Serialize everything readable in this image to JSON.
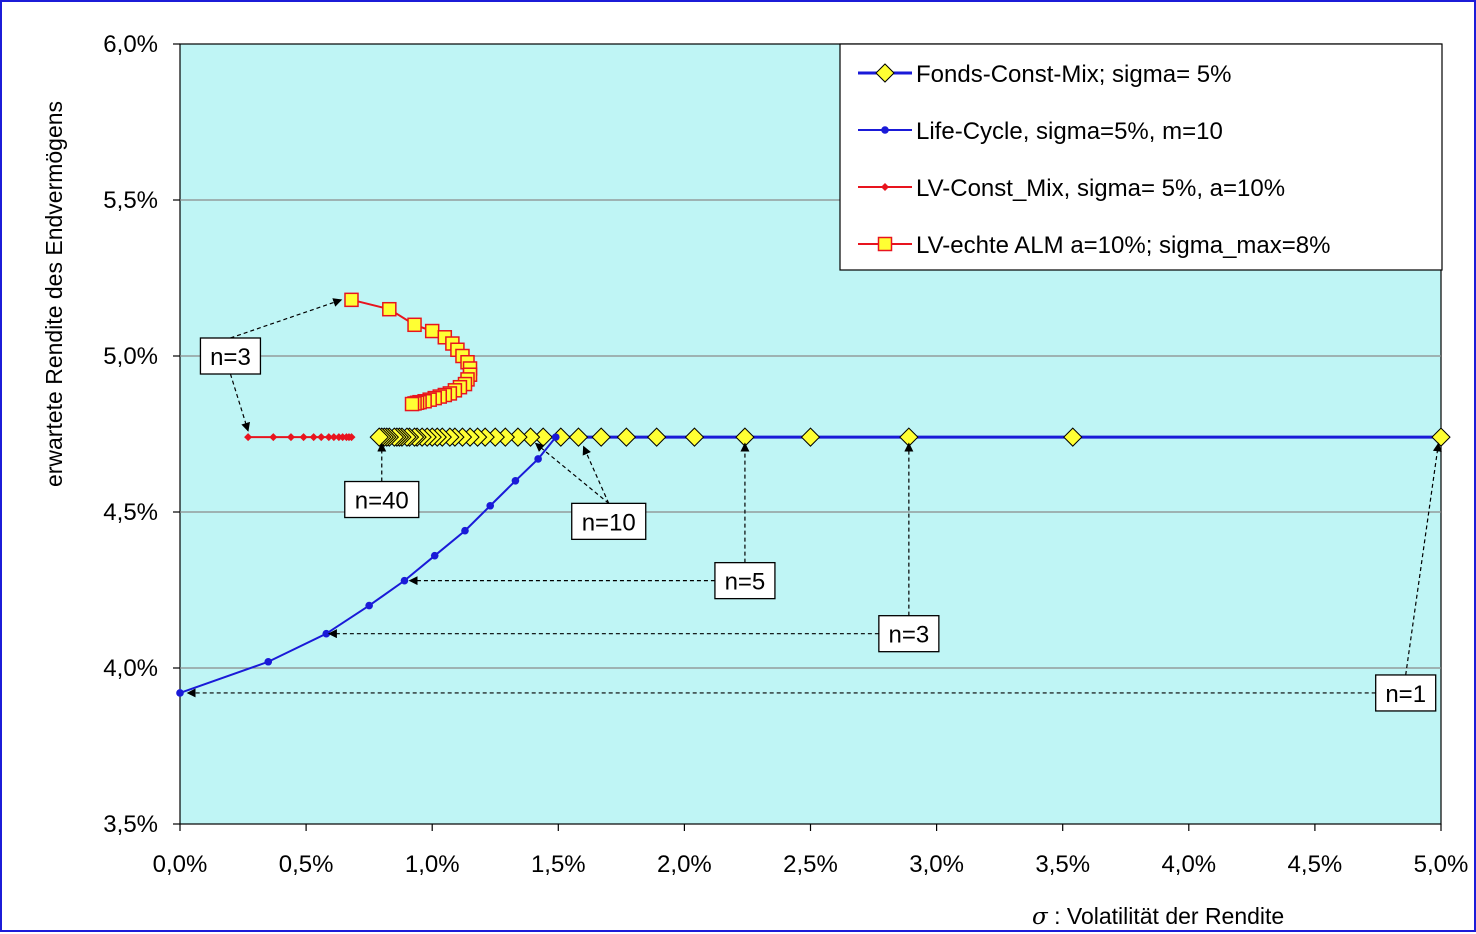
{
  "chart_data": {
    "type": "line",
    "xlabel_symbol": "σ",
    "xlabel": ": Volatilität der Rendite",
    "ylabel": "erwartete Rendite des Endvermögens",
    "xlim": [
      0.0,
      5.0
    ],
    "ylim": [
      3.5,
      6.0
    ],
    "x_ticks": [
      "0,0%",
      "0,5%",
      "1,0%",
      "1,5%",
      "2,0%",
      "2,5%",
      "3,0%",
      "3,5%",
      "4,0%",
      "4,5%",
      "5,0%"
    ],
    "x_tick_values": [
      0,
      0.5,
      1,
      1.5,
      2,
      2.5,
      3,
      3.5,
      4,
      4.5,
      5
    ],
    "y_ticks": [
      "3,5%",
      "4,0%",
      "4,5%",
      "5,0%",
      "5,5%",
      "6,0%"
    ],
    "y_tick_values": [
      3.5,
      4.0,
      4.5,
      5.0,
      5.5,
      6.0
    ],
    "grid": "horizontal",
    "plot_background": "#bff5f5",
    "legend_position": "top-right",
    "series": [
      {
        "name": "Fonds-Const-Mix; sigma= 5%",
        "color": "#1a1ad8",
        "marker": "diamond",
        "marker_fill": "#ffff33",
        "points": [
          [
            5.0,
            4.74
          ],
          [
            3.54,
            4.74
          ],
          [
            2.89,
            4.74
          ],
          [
            2.5,
            4.74
          ],
          [
            2.24,
            4.74
          ],
          [
            2.04,
            4.74
          ],
          [
            1.89,
            4.74
          ],
          [
            1.77,
            4.74
          ],
          [
            1.67,
            4.74
          ],
          [
            1.58,
            4.74
          ],
          [
            1.51,
            4.74
          ],
          [
            1.44,
            4.74
          ],
          [
            1.39,
            4.74
          ],
          [
            1.34,
            4.74
          ],
          [
            1.29,
            4.74
          ],
          [
            1.25,
            4.74
          ],
          [
            1.21,
            4.74
          ],
          [
            1.18,
            4.74
          ],
          [
            1.15,
            4.74
          ],
          [
            1.12,
            4.74
          ],
          [
            1.09,
            4.74
          ],
          [
            1.07,
            4.74
          ],
          [
            1.04,
            4.74
          ],
          [
            1.02,
            4.74
          ],
          [
            1.0,
            4.74
          ],
          [
            0.98,
            4.74
          ],
          [
            0.96,
            4.74
          ],
          [
            0.94,
            4.74
          ],
          [
            0.93,
            4.74
          ],
          [
            0.91,
            4.74
          ],
          [
            0.9,
            4.74
          ],
          [
            0.88,
            4.74
          ],
          [
            0.87,
            4.74
          ],
          [
            0.86,
            4.74
          ],
          [
            0.85,
            4.74
          ],
          [
            0.83,
            4.74
          ],
          [
            0.82,
            4.74
          ],
          [
            0.81,
            4.74
          ],
          [
            0.8,
            4.74
          ],
          [
            0.79,
            4.74
          ]
        ]
      },
      {
        "name": "Life-Cycle, sigma=5%, m=10",
        "color": "#1a1ad8",
        "marker": "circle",
        "marker_fill": "#1a1ad8",
        "points": [
          [
            0.0,
            3.92
          ],
          [
            0.35,
            4.02
          ],
          [
            0.58,
            4.11
          ],
          [
            0.75,
            4.2
          ],
          [
            0.89,
            4.28
          ],
          [
            1.01,
            4.36
          ],
          [
            1.13,
            4.44
          ],
          [
            1.23,
            4.52
          ],
          [
            1.33,
            4.6
          ],
          [
            1.42,
            4.67
          ],
          [
            1.49,
            4.74
          ]
        ]
      },
      {
        "name": "LV-Const_Mix, sigma= 5%, a=10%",
        "color": "#e8141e",
        "marker": "small-diamond",
        "marker_fill": "#e8141e",
        "points": [
          [
            0.27,
            4.74
          ],
          [
            0.37,
            4.74
          ],
          [
            0.44,
            4.74
          ],
          [
            0.49,
            4.74
          ],
          [
            0.53,
            4.74
          ],
          [
            0.56,
            4.74
          ],
          [
            0.59,
            4.74
          ],
          [
            0.61,
            4.74
          ],
          [
            0.63,
            4.74
          ],
          [
            0.645,
            4.74
          ],
          [
            0.66,
            4.74
          ],
          [
            0.67,
            4.74
          ],
          [
            0.68,
            4.74
          ]
        ]
      },
      {
        "name": "LV-echte ALM a=10%; sigma_max=8%",
        "color": "#e8141e",
        "marker": "square",
        "marker_fill": "#ffff33",
        "points": [
          [
            0.68,
            5.18
          ],
          [
            0.83,
            5.15
          ],
          [
            0.93,
            5.1
          ],
          [
            1.0,
            5.08
          ],
          [
            1.05,
            5.06
          ],
          [
            1.08,
            5.04
          ],
          [
            1.1,
            5.02
          ],
          [
            1.12,
            5.0
          ],
          [
            1.14,
            4.98
          ],
          [
            1.15,
            4.96
          ],
          [
            1.15,
            4.94
          ],
          [
            1.14,
            4.925
          ],
          [
            1.13,
            4.91
          ],
          [
            1.11,
            4.9
          ],
          [
            1.09,
            4.89
          ],
          [
            1.07,
            4.88
          ],
          [
            1.05,
            4.875
          ],
          [
            1.03,
            4.87
          ],
          [
            1.01,
            4.865
          ],
          [
            0.99,
            4.86
          ],
          [
            0.97,
            4.855
          ],
          [
            0.95,
            4.852
          ],
          [
            0.94,
            4.85
          ],
          [
            0.93,
            4.848
          ],
          [
            0.92,
            4.846
          ]
        ]
      }
    ],
    "annotations": [
      {
        "label": "n=3",
        "box": [
          0.2,
          5.0
        ],
        "targets": [
          [
            0.64,
            5.18
          ],
          [
            0.27,
            4.76
          ]
        ]
      },
      {
        "label": "n=40",
        "box": [
          0.8,
          4.54
        ],
        "targets": [
          [
            0.8,
            4.72
          ]
        ]
      },
      {
        "label": "n=10",
        "box": [
          1.7,
          4.47
        ],
        "targets": [
          [
            1.41,
            4.72
          ],
          [
            1.6,
            4.71
          ]
        ]
      },
      {
        "label": "n=5",
        "box": [
          2.24,
          4.28
        ],
        "targets": [
          [
            0.91,
            4.28
          ],
          [
            2.24,
            4.72
          ]
        ]
      },
      {
        "label": "n=3",
        "box": [
          2.89,
          4.11
        ],
        "targets": [
          [
            0.59,
            4.11
          ],
          [
            2.89,
            4.72
          ]
        ]
      },
      {
        "label": "n=1",
        "box": [
          4.86,
          3.92
        ],
        "targets": [
          [
            0.03,
            3.92
          ],
          [
            4.99,
            4.72
          ]
        ]
      }
    ]
  }
}
